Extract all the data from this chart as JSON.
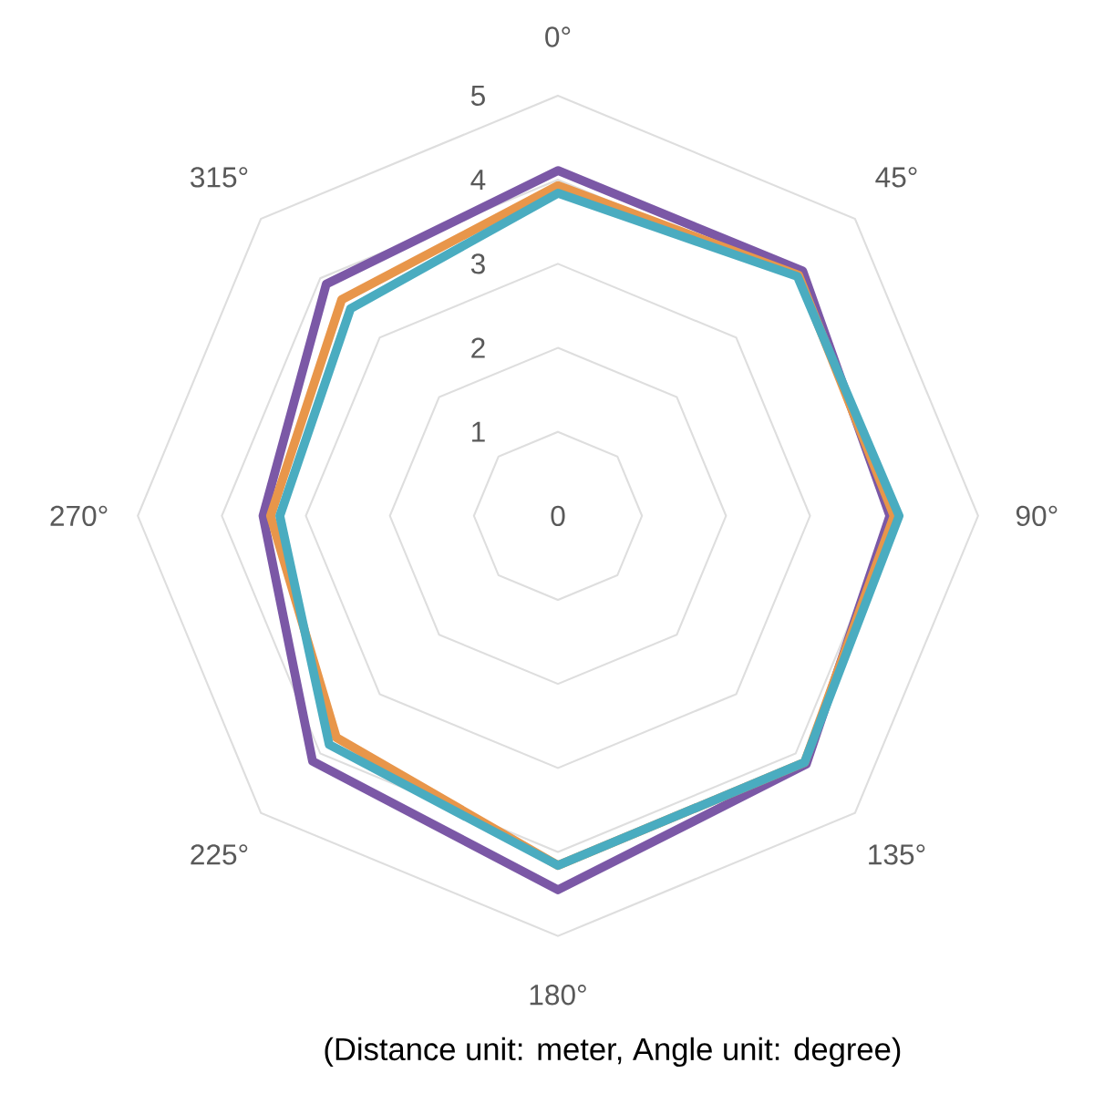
{
  "chart_data": {
    "type": "radar",
    "categories": [
      "0°",
      "45°",
      "90°",
      "135°",
      "180°",
      "225°",
      "270°",
      "315°"
    ],
    "series": [
      {
        "color": "#7b58a6",
        "values": [
          4.11,
          4.12,
          3.95,
          4.18,
          4.45,
          4.13,
          3.51,
          3.9
        ]
      },
      {
        "color": "#e8964a",
        "values": [
          3.93,
          4.05,
          4.0,
          4.15,
          4.16,
          3.73,
          3.42,
          3.64
        ]
      },
      {
        "color": "#4aacc0",
        "values": [
          3.84,
          4.03,
          4.06,
          4.15,
          4.16,
          3.85,
          3.31,
          3.49
        ]
      }
    ],
    "ylim": [
      0,
      5
    ],
    "yticks": [
      0,
      1,
      2,
      3,
      4,
      5
    ],
    "grid": true,
    "annotations": [
      "(Distance unit: meter, Angle unit: degree)"
    ]
  }
}
